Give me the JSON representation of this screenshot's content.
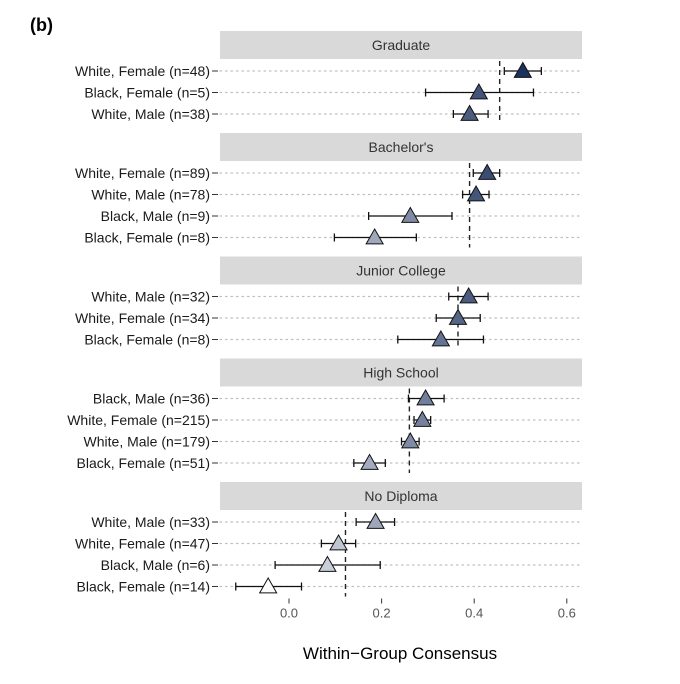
{
  "panel_label": "(b)",
  "chart_data": {
    "type": "dot-errorbar",
    "xlabel": "Within−Group Consensus",
    "xlim": [
      -0.16,
      0.64
    ],
    "xticks": [
      0.0,
      0.2,
      0.4,
      0.6
    ],
    "xtick_labels": [
      "0.0",
      "0.2",
      "0.4",
      "0.6"
    ],
    "grid": "horizontal dotted",
    "color_scale": {
      "low": "#ffffff",
      "high": "#1a2f5c",
      "min": -0.05,
      "max": 0.51
    },
    "facets": [
      {
        "title": "Graduate",
        "group_mean": 0.455,
        "rows": [
          {
            "label": "White, Female (n=48)",
            "value": 0.505,
            "low": 0.465,
            "high": 0.545
          },
          {
            "label": "Black, Female (n=5)",
            "value": 0.41,
            "low": 0.295,
            "high": 0.528
          },
          {
            "label": "White, Male (n=38)",
            "value": 0.39,
            "low": 0.355,
            "high": 0.43
          }
        ]
      },
      {
        "title": "Bachelor's",
        "group_mean": 0.39,
        "rows": [
          {
            "label": "White, Female (n=89)",
            "value": 0.428,
            "low": 0.398,
            "high": 0.455
          },
          {
            "label": "White, Male (n=78)",
            "value": 0.404,
            "low": 0.375,
            "high": 0.432
          },
          {
            "label": "Black, Male (n=9)",
            "value": 0.262,
            "low": 0.172,
            "high": 0.352
          },
          {
            "label": "Black, Female (n=8)",
            "value": 0.185,
            "low": 0.098,
            "high": 0.275
          }
        ]
      },
      {
        "title": "Junior College",
        "group_mean": 0.365,
        "rows": [
          {
            "label": "White, Male (n=32)",
            "value": 0.388,
            "low": 0.345,
            "high": 0.43
          },
          {
            "label": "White, Female (n=34)",
            "value": 0.365,
            "low": 0.318,
            "high": 0.413
          },
          {
            "label": "Black, Female (n=8)",
            "value": 0.328,
            "low": 0.235,
            "high": 0.42
          }
        ]
      },
      {
        "title": "High School",
        "group_mean": 0.26,
        "rows": [
          {
            "label": "Black, Male (n=36)",
            "value": 0.295,
            "low": 0.258,
            "high": 0.335
          },
          {
            "label": "White, Female (n=215)",
            "value": 0.288,
            "low": 0.27,
            "high": 0.306
          },
          {
            "label": "White, Male (n=179)",
            "value": 0.262,
            "low": 0.243,
            "high": 0.281
          },
          {
            "label": "Black, Female (n=51)",
            "value": 0.174,
            "low": 0.14,
            "high": 0.208
          }
        ]
      },
      {
        "title": "No Diploma",
        "group_mean": 0.122,
        "rows": [
          {
            "label": "White, Male (n=33)",
            "value": 0.187,
            "low": 0.145,
            "high": 0.228
          },
          {
            "label": "White, Female (n=47)",
            "value": 0.107,
            "low": 0.07,
            "high": 0.144
          },
          {
            "label": "Black, Male (n=6)",
            "value": 0.083,
            "low": -0.03,
            "high": 0.197
          },
          {
            "label": "Black, Female (n=14)",
            "value": -0.045,
            "low": -0.115,
            "high": 0.027
          }
        ]
      }
    ]
  }
}
